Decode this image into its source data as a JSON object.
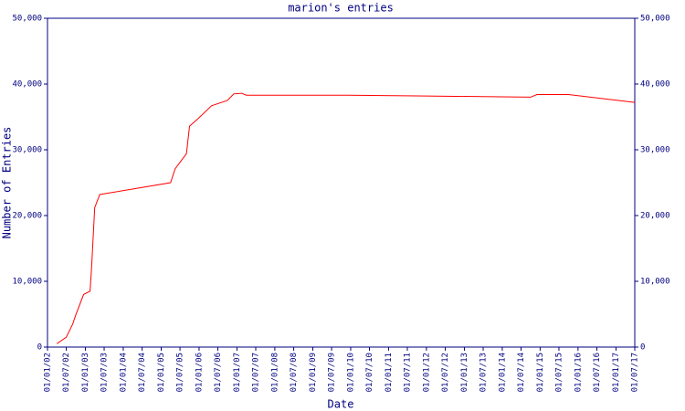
{
  "chart_data": {
    "type": "line",
    "title": "marion's entries",
    "x_label": "Date",
    "y_label": "Number of Entries",
    "x": [
      "2002-04-01",
      "2002-07-01",
      "2002-09-01",
      "2002-10-01",
      "2002-12-15",
      "2003-02-15",
      "2003-03-01",
      "2003-04-01",
      "2003-05-20",
      "2005-04-01",
      "2005-05-15",
      "2005-09-01",
      "2005-10-01",
      "2005-12-20",
      "2006-05-01",
      "2006-10-01",
      "2006-12-01",
      "2007-02-15",
      "2007-04-01",
      "2009-11-01",
      "2011-10-01",
      "2014-10-01",
      "2014-12-01",
      "2015-10-01",
      "2017-07-01"
    ],
    "series": [
      {
        "color": "#ff0000",
        "values": [
          500,
          1500,
          3500,
          4900,
          8000,
          8500,
          11800,
          21200,
          23200,
          25000,
          27100,
          29400,
          33600,
          34700,
          36700,
          37500,
          38500,
          38600,
          38300,
          38300,
          38200,
          38000,
          38400,
          38400,
          37200
        ]
      }
    ],
    "xlim": [
      "2002-01-01",
      "2017-07-01"
    ],
    "xticks": [
      {
        "value": "2002-01-01",
        "label": "01/01/02"
      },
      {
        "value": "2002-07-01",
        "label": "01/07/02"
      },
      {
        "value": "2003-01-01",
        "label": "01/01/03"
      },
      {
        "value": "2003-07-01",
        "label": "01/07/03"
      },
      {
        "value": "2004-01-01",
        "label": "01/01/04"
      },
      {
        "value": "2004-07-01",
        "label": "01/07/04"
      },
      {
        "value": "2005-01-01",
        "label": "01/01/05"
      },
      {
        "value": "2005-07-01",
        "label": "01/07/05"
      },
      {
        "value": "2006-01-01",
        "label": "01/01/06"
      },
      {
        "value": "2006-07-01",
        "label": "01/07/06"
      },
      {
        "value": "2007-01-01",
        "label": "01/01/07"
      },
      {
        "value": "2007-07-01",
        "label": "01/07/07"
      },
      {
        "value": "2008-01-01",
        "label": "01/01/08"
      },
      {
        "value": "2008-07-01",
        "label": "01/07/08"
      },
      {
        "value": "2009-01-01",
        "label": "01/01/09"
      },
      {
        "value": "2009-07-01",
        "label": "01/07/09"
      },
      {
        "value": "2010-01-01",
        "label": "01/01/10"
      },
      {
        "value": "2010-07-01",
        "label": "01/07/10"
      },
      {
        "value": "2011-01-01",
        "label": "01/01/11"
      },
      {
        "value": "2011-07-01",
        "label": "01/07/11"
      },
      {
        "value": "2012-01-01",
        "label": "01/01/12"
      },
      {
        "value": "2012-07-01",
        "label": "01/07/12"
      },
      {
        "value": "2013-01-01",
        "label": "01/01/13"
      },
      {
        "value": "2013-07-01",
        "label": "01/07/13"
      },
      {
        "value": "2014-01-01",
        "label": "01/01/14"
      },
      {
        "value": "2014-07-01",
        "label": "01/07/14"
      },
      {
        "value": "2015-01-01",
        "label": "01/01/15"
      },
      {
        "value": "2015-07-01",
        "label": "01/07/15"
      },
      {
        "value": "2016-01-01",
        "label": "01/01/16"
      },
      {
        "value": "2016-07-01",
        "label": "01/07/16"
      },
      {
        "value": "2017-01-01",
        "label": "01/01/17"
      },
      {
        "value": "2017-07-01",
        "label": "01/07/17"
      }
    ],
    "ylim": [
      0,
      50000
    ],
    "yticks": [
      0,
      {
        "value": 10000,
        "label": "10,000"
      },
      {
        "value": 20000,
        "label": "20,000"
      },
      {
        "value": 30000,
        "label": "30,000"
      },
      {
        "value": 40000,
        "label": "40,000"
      },
      {
        "value": 50000,
        "label": "50,000"
      }
    ],
    "y2lim": [
      0,
      50000
    ],
    "y2ticks": [
      0,
      {
        "value": 10000,
        "label": "10,000"
      },
      {
        "value": 20000,
        "label": "20,000"
      },
      {
        "value": 30000,
        "label": "30,000"
      },
      {
        "value": 40000,
        "label": "40,000"
      },
      {
        "value": 50000,
        "label": "50,000"
      }
    ],
    "axis_color": "#000080"
  }
}
